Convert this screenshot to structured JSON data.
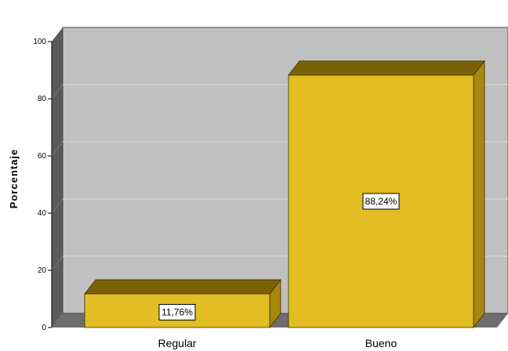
{
  "chart_data": {
    "type": "bar",
    "categories": [
      "Regular",
      "Bueno"
    ],
    "values": [
      11.76,
      88.24
    ],
    "data_labels": [
      "11,76%",
      "88,24%"
    ],
    "ylabel": "Porcentaje",
    "xlabel": "",
    "ylim": [
      0,
      100
    ],
    "yticks": [
      "0",
      "20",
      "40",
      "60",
      "80",
      "100"
    ],
    "grid": true,
    "legend": "none"
  },
  "colors": {
    "bar_front": "#e2bd23",
    "bar_top": "#7a6307",
    "bar_side": "#a8870d",
    "plot_back": "#c0c0c0",
    "plot_side": "#5a5a5a",
    "plot_floor": "#6e6e6e",
    "gridline": "#dcdcdc"
  }
}
